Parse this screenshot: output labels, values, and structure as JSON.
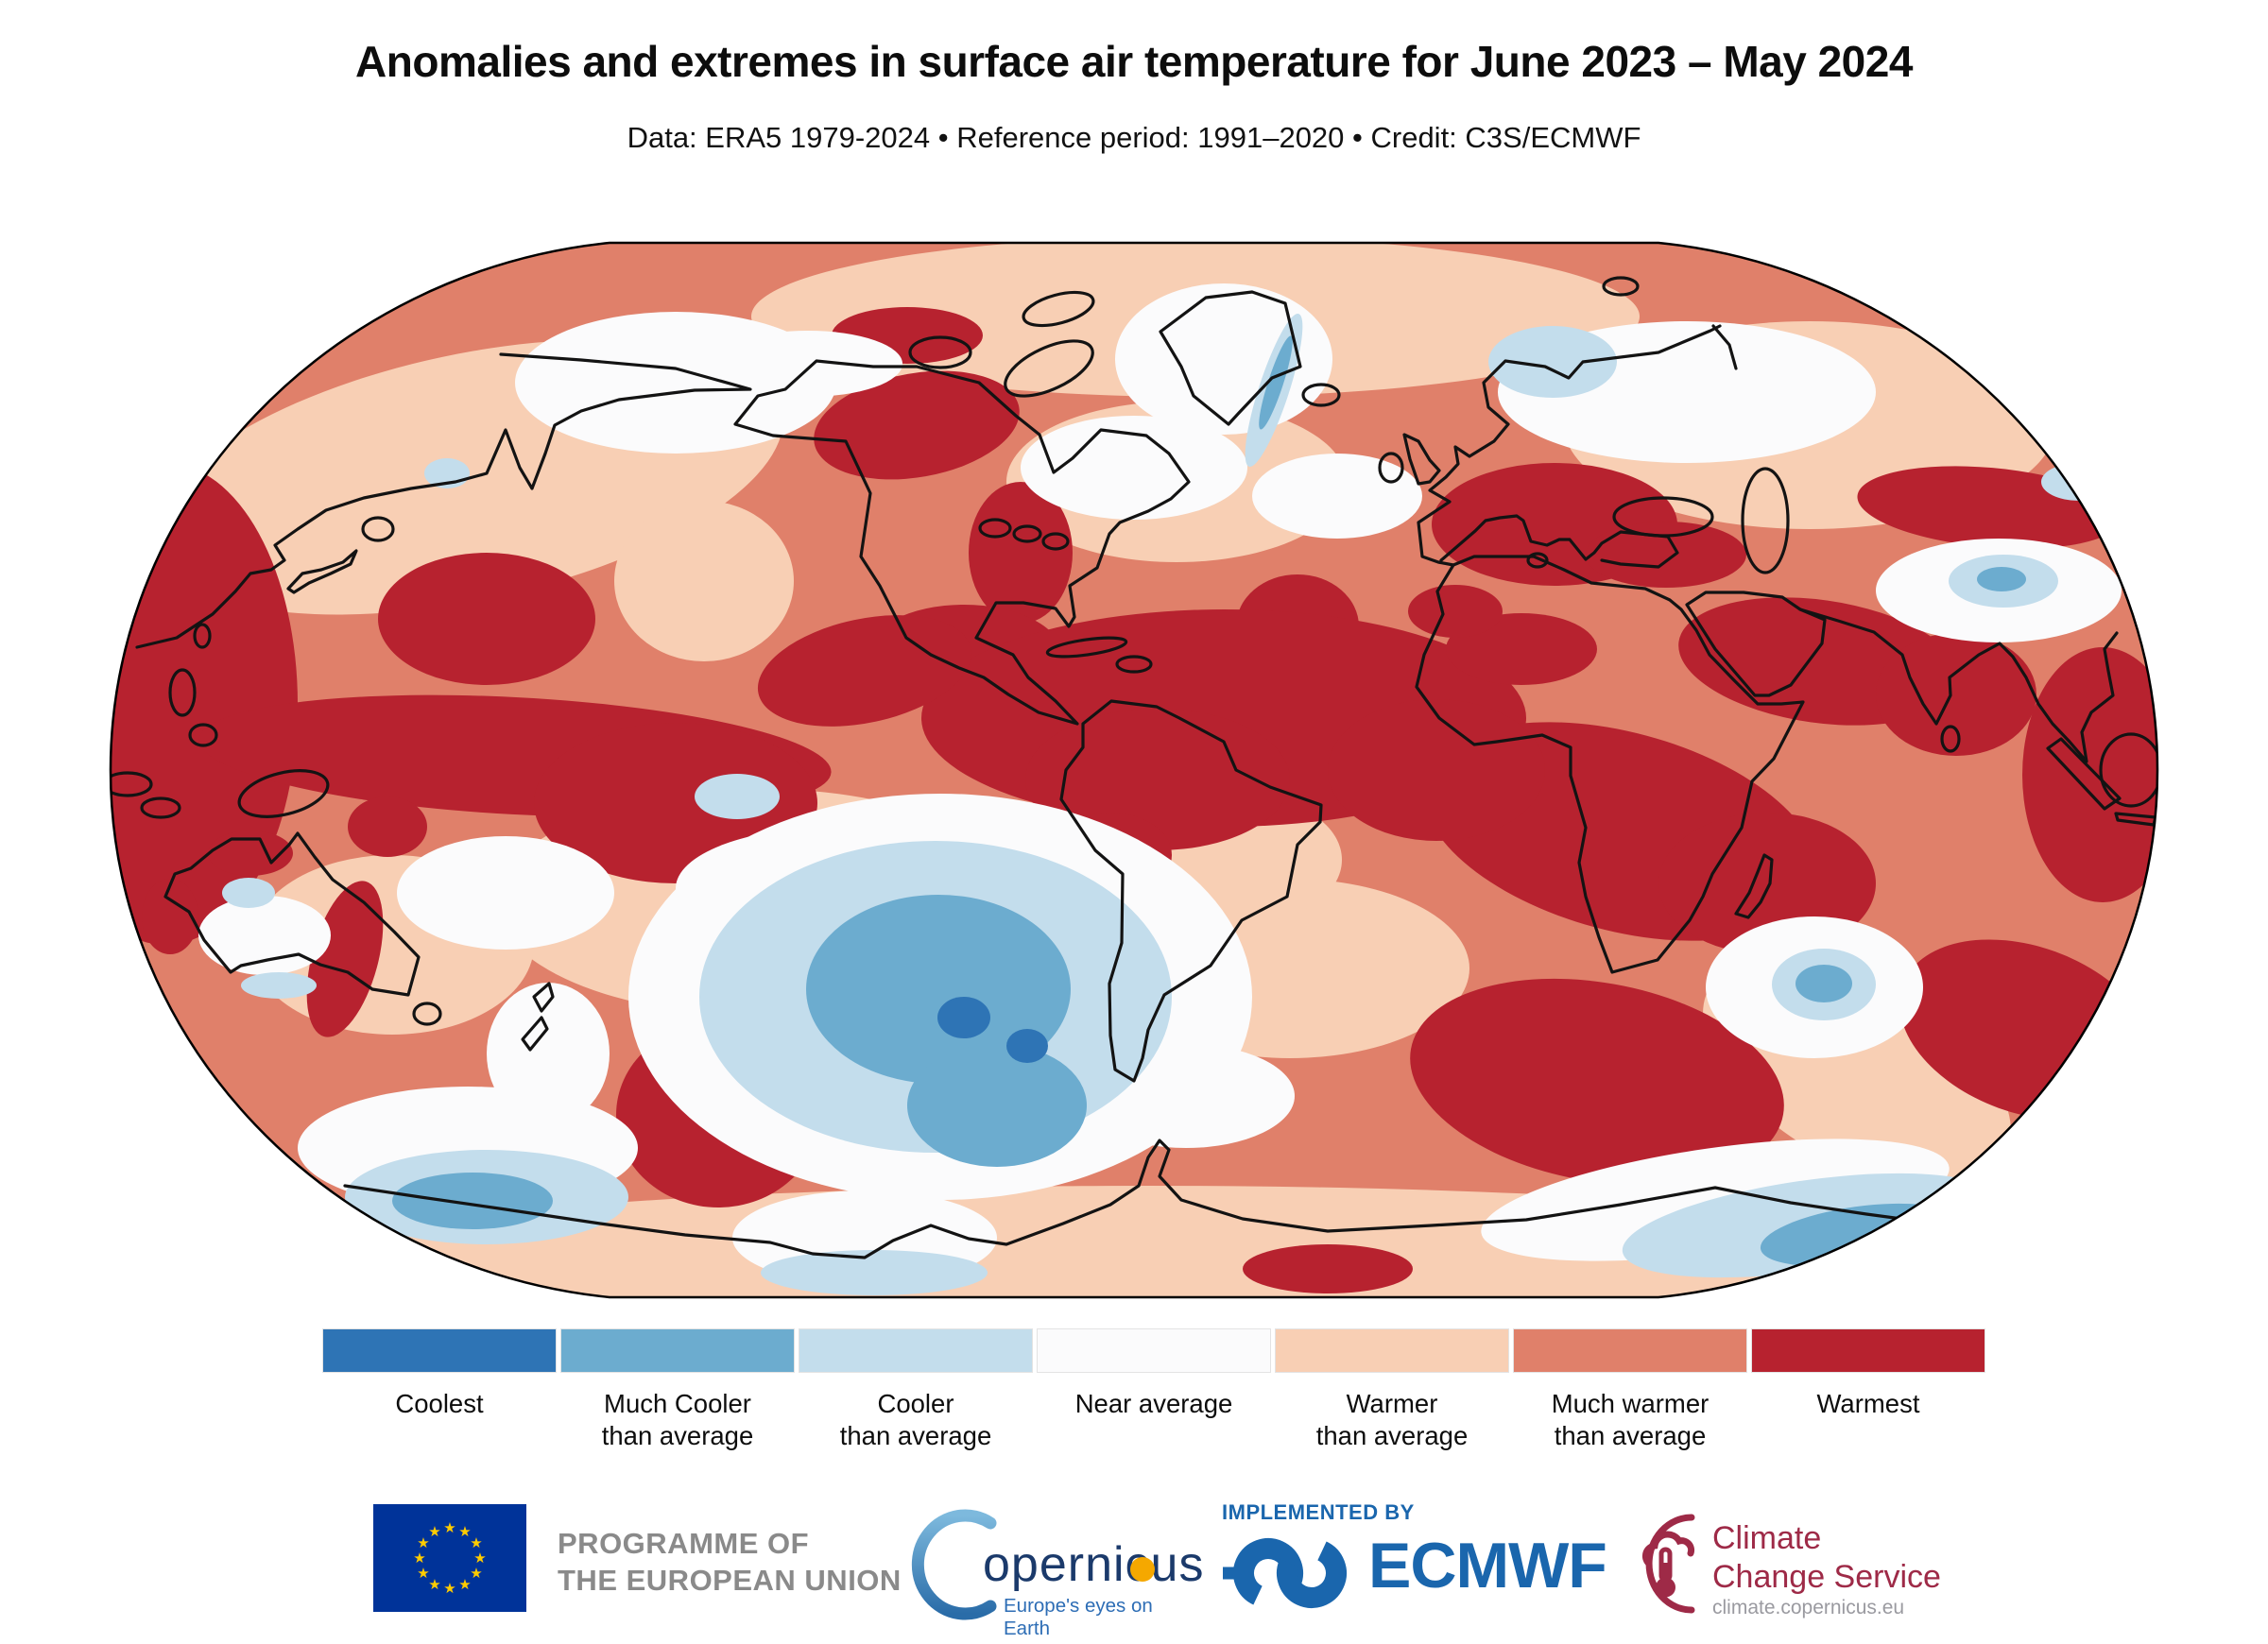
{
  "title": "Anomalies and extremes in surface air temperature for June 2023 – May 2024",
  "subtitle": "Data: ERA5 1979-2024 • Reference period: 1991–2020 • Credit: C3S/ECMWF",
  "palette": {
    "coolest": "#2e74b5",
    "much_cooler": "#6caccf",
    "cooler": "#c3ddec",
    "near_average": "#fbfbfc",
    "warmer": "#f8cfb4",
    "much_warmer": "#e0806a",
    "warmest": "#b7222f"
  },
  "legend": {
    "classes": [
      {
        "key": "coolest",
        "label_lines": [
          "Coolest",
          ""
        ]
      },
      {
        "key": "much_cooler",
        "label_lines": [
          "Much Cooler",
          "than average"
        ]
      },
      {
        "key": "cooler",
        "label_lines": [
          "Cooler",
          "than average"
        ]
      },
      {
        "key": "near_average",
        "label_lines": [
          "Near average",
          ""
        ]
      },
      {
        "key": "warmer",
        "label_lines": [
          "Warmer",
          "than average"
        ]
      },
      {
        "key": "much_warmer",
        "label_lines": [
          "Much warmer",
          "than average"
        ]
      },
      {
        "key": "warmest",
        "label_lines": [
          "Warmest",
          ""
        ]
      }
    ]
  },
  "map": {
    "type": "choropleth-world-map",
    "projection": "Robinson-style globe",
    "outline_color": "#000000",
    "coastline_color": "#131313",
    "notable_features": "Widespread warmer/much-warmer/warmest anomalies; cooler-than-average pool over the Southeast Pacific near southern South America, Scandinavia, Tibet and parts of the Southern Ocean"
  },
  "footer": {
    "eu": {
      "line1": "PROGRAMME OF",
      "line2": "THE EUROPEAN UNION",
      "flag_blue": "#003399",
      "star_yellow": "#ffcc00"
    },
    "copernicus": {
      "name": "opernicus",
      "tagline": "Europe's eyes on Earth",
      "navy": "#1b3a6b",
      "arc_blue": "#3f8fc5",
      "orange": "#f5a800"
    },
    "ecmwf": {
      "implemented_by": "IMPLEMENTED BY",
      "name": "ECMWF",
      "blue": "#1a66ad"
    },
    "c3s": {
      "line1": "Climate",
      "line2": "Change Service",
      "url": "climate.copernicus.eu",
      "crimson": "#9e2a47"
    }
  }
}
